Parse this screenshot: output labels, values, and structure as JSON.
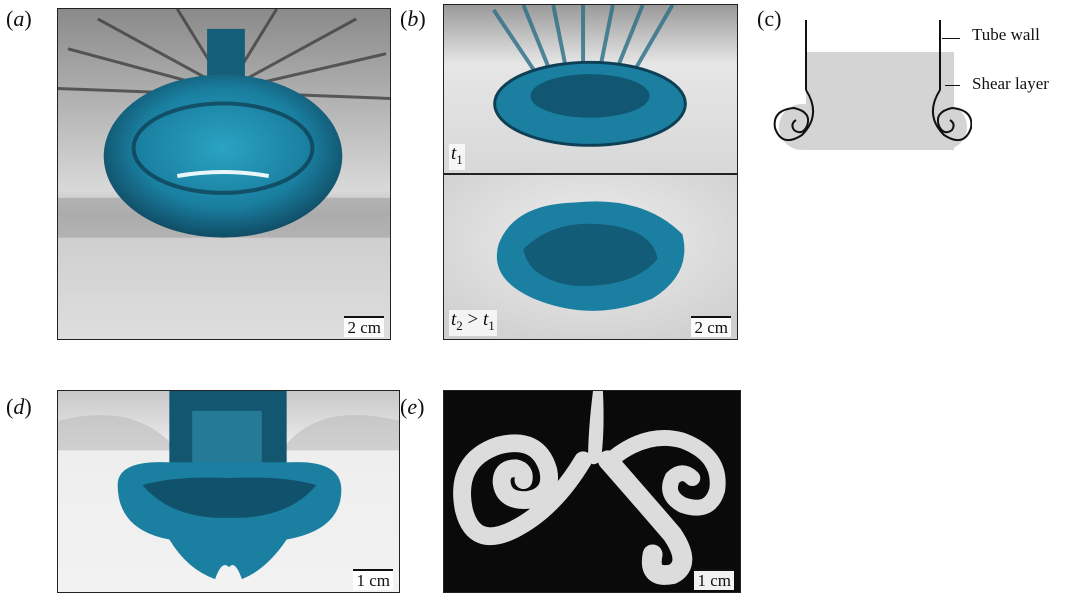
{
  "panels": {
    "a": {
      "label": "(",
      "letter": "a",
      "close": ")",
      "scale": "2 cm"
    },
    "b": {
      "label": "(",
      "letter": "b",
      "close": ")",
      "top_time": {
        "t": "t",
        "sub": "1"
      },
      "bottom_time": {
        "t": "t",
        "sub": "2",
        "op": " > ",
        "t2": "t",
        "sub2": "1"
      },
      "scale": "2 cm"
    },
    "c": {
      "label": "(c)",
      "tube_wall": "Tube wall",
      "shear_layer": "Shear layer"
    },
    "d": {
      "label": "(",
      "letter": "d",
      "close": ")",
      "scale": "1 cm"
    },
    "e": {
      "label": "(",
      "letter": "e",
      "close": ")",
      "scale": "1 cm"
    }
  },
  "colors": {
    "dye_blue": "#1a7fa0",
    "dye_dark": "#0d3f55",
    "fluid_grey": "#d4d4d4",
    "background_dark": "#0a0a0a"
  }
}
